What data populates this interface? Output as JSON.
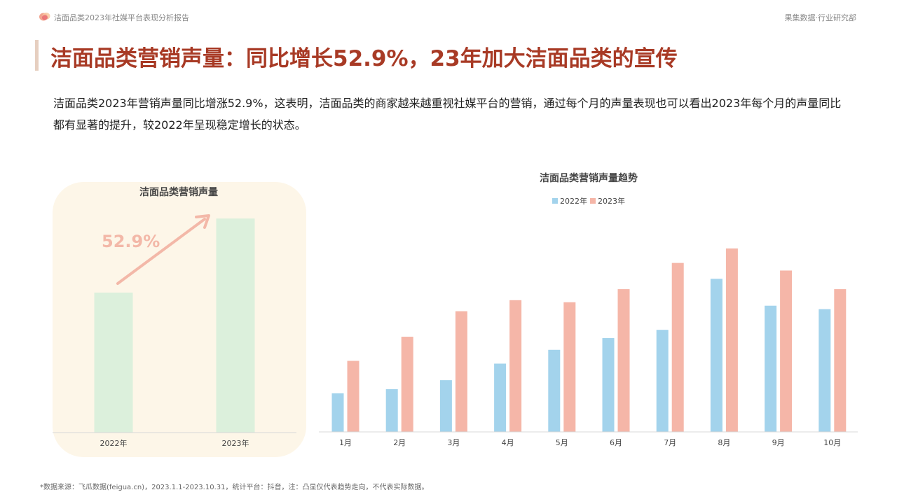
{
  "header": {
    "report_title": "洁面品类2023年社媒平台表现分析报告",
    "org": "果集数据·行业研究部"
  },
  "headline": "洁面品类营销声量：同比增长52.9%，23年加大洁面品类的宣传",
  "description": "洁面品类2023年营销声量同比增涨52.9%，这表明，洁面品类的商家越来越重视社媒平台的营销，通过每个月的声量表现也可以看出2023年每个月的声量同比都有显著的提升，较2022年呈现稳定增长的状态。",
  "colors": {
    "headline": "#a83a25",
    "bar_2022_left": "#dcf0dc",
    "bar_2023_left": "#dcf0dc",
    "arrow": "#f3b8a8",
    "series_2022": "#a3d3ec",
    "series_2023": "#f5b6a8",
    "panel_bg": "#fdf6e8"
  },
  "footnote": "*数据来源：飞瓜数据(feigua.cn)，2023.1.1-2023.10.31，统计平台：抖音，注：凸显仅代表趋势走向，不代表实际数据。",
  "chart_data": [
    {
      "type": "bar",
      "title": "洁面品类营销声量",
      "categories": [
        "2022年",
        "2023年"
      ],
      "values": [
        100,
        152.9
      ],
      "ylim": [
        0,
        155
      ],
      "annotation": "52.9%",
      "grid": false
    },
    {
      "type": "bar",
      "title": "洁面品类营销声量趋势",
      "categories": [
        "1月",
        "2月",
        "3月",
        "4月",
        "5月",
        "6月",
        "7月",
        "8月",
        "9月",
        "10月"
      ],
      "series": [
        {
          "name": "2022年",
          "values": [
            56,
            62,
            75,
            99,
            119,
            136,
            148,
            222,
            183,
            178
          ]
        },
        {
          "name": "2023年",
          "values": [
            103,
            138,
            175,
            191,
            188,
            207,
            245,
            266,
            234,
            207
          ]
        }
      ],
      "ylim": [
        0,
        270
      ],
      "legend": "top-center",
      "grid": false
    }
  ]
}
